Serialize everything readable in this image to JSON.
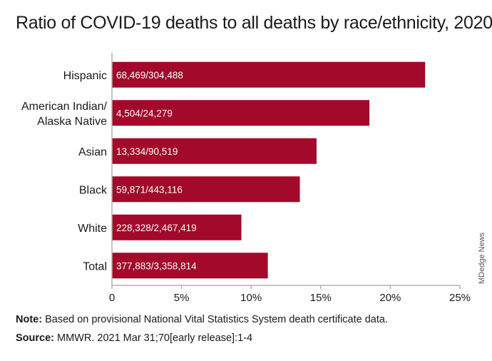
{
  "title": "Ratio of COVID-19 deaths to all deaths by race/ethnicity, 2020",
  "note": {
    "label": "Note:",
    "text": " Based on provisional National Vital Statistics System death certificate data."
  },
  "source": {
    "label": "Source:",
    "text": " MMWR. 2021 Mar 31;70[early release]:1-4"
  },
  "credit": "MDedge News",
  "colors": {
    "bar": "#a3092a",
    "axis": "#b0b0b0",
    "bar_label": "#ffffff"
  },
  "chart_data": {
    "type": "bar",
    "orientation": "horizontal",
    "title": "Ratio of COVID-19 deaths to all deaths by race/ethnicity, 2020",
    "categories": [
      [
        "Hispanic"
      ],
      [
        "American Indian/",
        "Alaska Native"
      ],
      [
        "Asian"
      ],
      [
        "Black"
      ],
      [
        "White"
      ],
      [
        "Total"
      ]
    ],
    "values": [
      22.5,
      18.5,
      14.7,
      13.5,
      9.3,
      11.2
    ],
    "data_labels": [
      "68,469/304,488",
      "4,504/24,279",
      "13,334/90,519",
      "59,871/443,116",
      "228,328/2,467,419",
      "377,883/3,358,814"
    ],
    "xlim": [
      0,
      25
    ],
    "ticks": [
      0,
      5,
      10,
      15,
      20,
      25
    ],
    "tick_labels": [
      "0",
      "5%",
      "10%",
      "15%",
      "20%",
      "25%"
    ],
    "grid": false,
    "legend": "none"
  }
}
